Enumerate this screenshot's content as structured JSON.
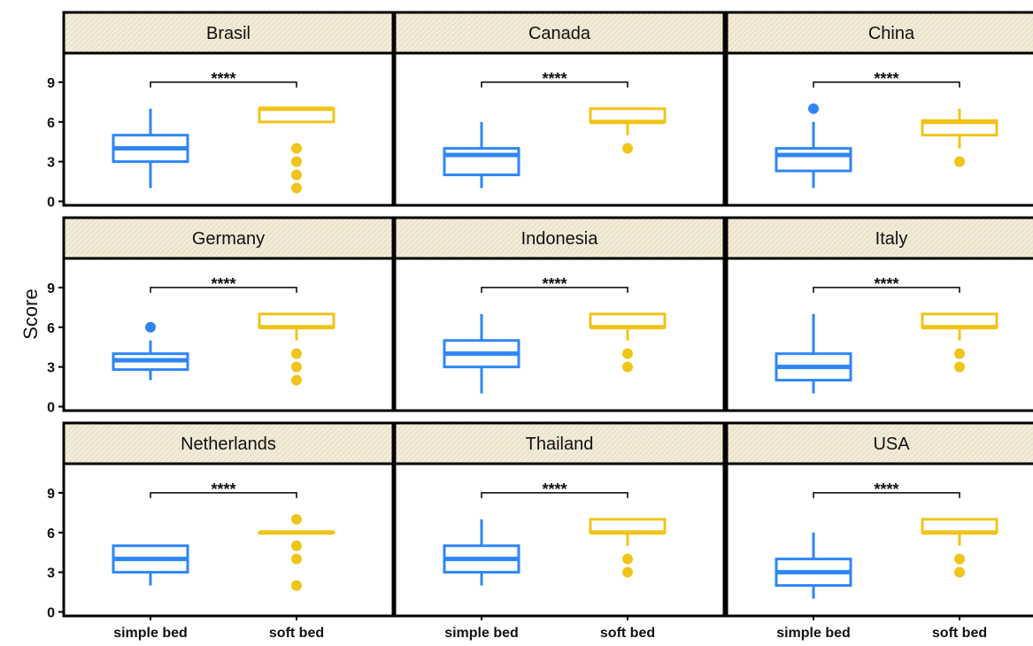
{
  "chart_data": {
    "type": "boxplot",
    "ylabel": "Score",
    "ylim": [
      -0.3,
      11.2
    ],
    "y_ticks": [
      0,
      3,
      6,
      9
    ],
    "categories": [
      "simple bed",
      "soft bed"
    ],
    "colors": {
      "simple bed": "#2e86f5",
      "soft bed": "#f0c419"
    },
    "significance_label": "****",
    "panels": [
      {
        "title": "Brasil",
        "boxes": [
          {
            "category": "simple bed",
            "min": 1,
            "q1": 3,
            "median": 4,
            "q3": 5,
            "max": 7,
            "outliers": []
          },
          {
            "category": "soft bed",
            "min": 6,
            "q1": 6,
            "median": 7,
            "q3": 7,
            "max": 7,
            "outliers": [
              4,
              3,
              2,
              1
            ]
          }
        ]
      },
      {
        "title": "Canada",
        "boxes": [
          {
            "category": "simple bed",
            "min": 1,
            "q1": 2,
            "median": 3.5,
            "q3": 4,
            "max": 6,
            "outliers": []
          },
          {
            "category": "soft bed",
            "min": 5,
            "q1": 6,
            "median": 6,
            "q3": 7,
            "max": 7,
            "outliers": [
              4
            ]
          }
        ]
      },
      {
        "title": "China",
        "boxes": [
          {
            "category": "simple bed",
            "min": 1,
            "q1": 2.3,
            "median": 3.5,
            "q3": 4,
            "max": 6,
            "outliers": [
              7
            ]
          },
          {
            "category": "soft bed",
            "min": 4,
            "q1": 5,
            "median": 6,
            "q3": 6.1,
            "max": 7,
            "outliers": [
              3
            ]
          }
        ]
      },
      {
        "title": "Germany",
        "boxes": [
          {
            "category": "simple bed",
            "min": 2,
            "q1": 2.8,
            "median": 3.5,
            "q3": 4,
            "max": 5,
            "outliers": [
              6
            ]
          },
          {
            "category": "soft bed",
            "min": 5,
            "q1": 6,
            "median": 6,
            "q3": 7,
            "max": 7,
            "outliers": [
              4,
              3,
              2
            ]
          }
        ]
      },
      {
        "title": "Indonesia",
        "boxes": [
          {
            "category": "simple bed",
            "min": 1,
            "q1": 3,
            "median": 4,
            "q3": 5,
            "max": 7,
            "outliers": []
          },
          {
            "category": "soft bed",
            "min": 5,
            "q1": 6,
            "median": 6,
            "q3": 7,
            "max": 7,
            "outliers": [
              4,
              3
            ]
          }
        ]
      },
      {
        "title": "Italy",
        "boxes": [
          {
            "category": "simple bed",
            "min": 1,
            "q1": 2,
            "median": 3,
            "q3": 4,
            "max": 7,
            "outliers": []
          },
          {
            "category": "soft bed",
            "min": 5,
            "q1": 6,
            "median": 6,
            "q3": 7,
            "max": 7,
            "outliers": [
              4,
              3
            ]
          }
        ]
      },
      {
        "title": "Netherlands",
        "boxes": [
          {
            "category": "simple bed",
            "min": 2,
            "q1": 3,
            "median": 4,
            "q3": 5,
            "max": 5,
            "outliers": []
          },
          {
            "category": "soft bed",
            "min": 6,
            "q1": 6,
            "median": 6,
            "q3": 6,
            "max": 6,
            "outliers": [
              7,
              5,
              4,
              2
            ]
          }
        ]
      },
      {
        "title": "Thailand",
        "boxes": [
          {
            "category": "simple bed",
            "min": 2,
            "q1": 3,
            "median": 4,
            "q3": 5,
            "max": 7,
            "outliers": []
          },
          {
            "category": "soft bed",
            "min": 5,
            "q1": 6,
            "median": 6,
            "q3": 7,
            "max": 7,
            "outliers": [
              4,
              3
            ]
          }
        ]
      },
      {
        "title": "USA",
        "boxes": [
          {
            "category": "simple bed",
            "min": 1,
            "q1": 2,
            "median": 3,
            "q3": 4,
            "max": 6,
            "outliers": []
          },
          {
            "category": "soft bed",
            "min": 5,
            "q1": 6,
            "median": 6,
            "q3": 7,
            "max": 7,
            "outliers": [
              4,
              3
            ]
          }
        ]
      }
    ]
  }
}
